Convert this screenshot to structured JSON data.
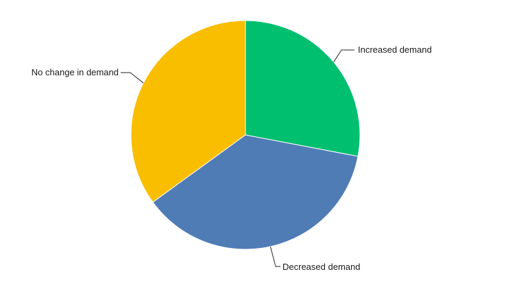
{
  "chart_data": {
    "type": "pie",
    "slices": [
      {
        "label": "Increased demand",
        "value": 28,
        "color": "#00bf6f"
      },
      {
        "label": "Decreased demand",
        "value": 37,
        "color": "#507cb6"
      },
      {
        "label": "No change in demand",
        "value": 35,
        "color": "#f9be00"
      }
    ],
    "start_angle_deg": 0,
    "direction": "clockwise",
    "legend": "none"
  }
}
